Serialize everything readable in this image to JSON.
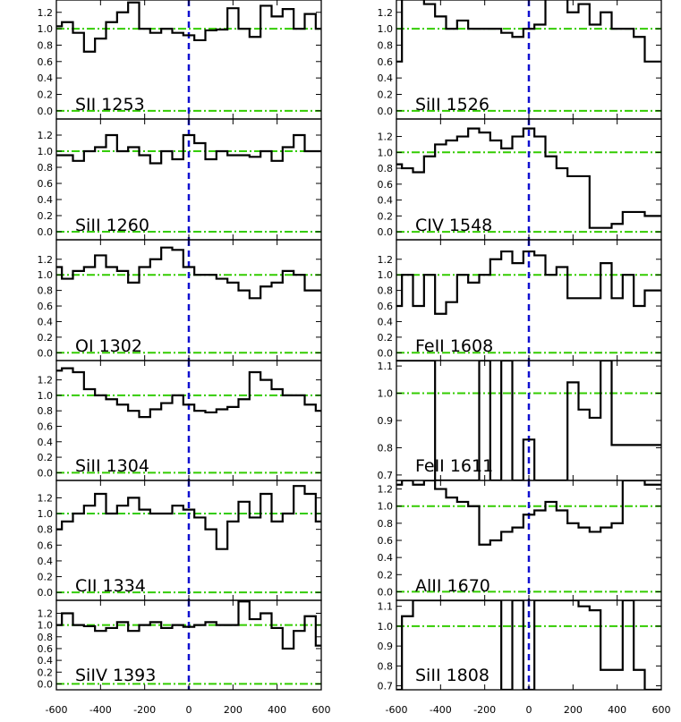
{
  "colors": {
    "spectrum": "#000000",
    "zero_line": "#1010d0",
    "continuum": "#33cc00"
  },
  "x_tick_labels": [
    "-600",
    "-400",
    "-200",
    "0",
    "200",
    "400",
    "600"
  ],
  "chart_data": [
    {
      "type": "line",
      "step": true,
      "column": "left",
      "row": 0,
      "label": "SII 1253",
      "x": [
        -600,
        -550,
        -500,
        -450,
        -400,
        -350,
        -300,
        -250,
        -200,
        -150,
        -100,
        -50,
        0,
        50,
        100,
        150,
        200,
        250,
        300,
        350,
        400,
        450,
        500,
        550,
        600
      ],
      "values": [
        1.03,
        1.08,
        0.95,
        0.72,
        0.88,
        1.08,
        1.2,
        1.32,
        1.0,
        0.95,
        1.0,
        0.95,
        0.92,
        0.86,
        0.98,
        0.99,
        1.25,
        1.0,
        0.9,
        1.28,
        1.15,
        1.24,
        1.0,
        1.18,
        1.0
      ],
      "xlim": [
        -600,
        600
      ],
      "ylim": [
        -0.1,
        1.35
      ],
      "yticks": [
        0.0,
        0.2,
        0.4,
        0.6,
        0.8,
        1.0,
        1.2
      ],
      "ytick_labels": [
        "0.0",
        "0.2",
        "0.4",
        "0.6",
        "0.8",
        "1.0",
        "1.2"
      ],
      "hlines": [
        0.0,
        1.0
      ],
      "vline": 0
    },
    {
      "type": "line",
      "step": true,
      "column": "left",
      "row": 1,
      "label": "SiII 1260",
      "x": [
        -600,
        -550,
        -500,
        -450,
        -400,
        -350,
        -300,
        -250,
        -200,
        -150,
        -100,
        -50,
        0,
        50,
        100,
        150,
        200,
        250,
        300,
        350,
        400,
        450,
        500,
        550,
        600
      ],
      "values": [
        0.95,
        0.95,
        0.88,
        1.0,
        1.05,
        1.2,
        1.0,
        1.05,
        0.95,
        0.85,
        1.0,
        0.9,
        1.2,
        1.1,
        0.9,
        1.0,
        0.95,
        0.95,
        0.93,
        1.0,
        0.88,
        1.05,
        1.2,
        1.0,
        1.0
      ],
      "xlim": [
        -600,
        600
      ],
      "ylim": [
        -0.1,
        1.4
      ],
      "yticks": [
        0.0,
        0.2,
        0.4,
        0.6,
        0.8,
        1.0,
        1.2
      ],
      "ytick_labels": [
        "0.0",
        "0.2",
        "0.4",
        "0.6",
        "0.8",
        "1.0",
        "1.2"
      ],
      "hlines": [
        0.0,
        1.0
      ],
      "vline": 0
    },
    {
      "type": "line",
      "step": true,
      "column": "left",
      "row": 2,
      "label": "OI 1302",
      "x": [
        -600,
        -550,
        -500,
        -450,
        -400,
        -350,
        -300,
        -250,
        -200,
        -150,
        -100,
        -50,
        0,
        50,
        100,
        150,
        200,
        250,
        300,
        350,
        400,
        450,
        500,
        550,
        600
      ],
      "values": [
        1.1,
        0.95,
        1.05,
        1.1,
        1.25,
        1.1,
        1.05,
        0.9,
        1.1,
        1.2,
        1.35,
        1.32,
        1.1,
        1.0,
        1.0,
        0.95,
        0.9,
        0.8,
        0.7,
        0.85,
        0.9,
        1.05,
        1.0,
        0.8,
        0.8
      ],
      "xlim": [
        -600,
        600
      ],
      "ylim": [
        -0.1,
        1.45
      ],
      "yticks": [
        0.0,
        0.2,
        0.4,
        0.6,
        0.8,
        1.0,
        1.2
      ],
      "ytick_labels": [
        "0.0",
        "0.2",
        "0.4",
        "0.6",
        "0.8",
        "1.0",
        "1.2"
      ],
      "hlines": [
        0.0,
        1.0
      ],
      "vline": 0
    },
    {
      "type": "line",
      "step": true,
      "column": "left",
      "row": 3,
      "label": "SiII 1304",
      "x": [
        -600,
        -550,
        -500,
        -450,
        -400,
        -350,
        -300,
        -250,
        -200,
        -150,
        -100,
        -50,
        0,
        50,
        100,
        150,
        200,
        250,
        300,
        350,
        400,
        450,
        500,
        550,
        600
      ],
      "values": [
        1.32,
        1.35,
        1.3,
        1.08,
        1.0,
        0.95,
        0.88,
        0.8,
        0.72,
        0.82,
        0.9,
        1.0,
        0.88,
        0.8,
        0.78,
        0.82,
        0.85,
        0.95,
        1.3,
        1.2,
        1.08,
        1.0,
        1.0,
        0.88,
        0.8
      ],
      "xlim": [
        -600,
        600
      ],
      "ylim": [
        -0.1,
        1.45
      ],
      "yticks": [
        0.0,
        0.2,
        0.4,
        0.6,
        0.8,
        1.0,
        1.2
      ],
      "ytick_labels": [
        "0.0",
        "0.2",
        "0.4",
        "0.6",
        "0.8",
        "1.0",
        "1.2"
      ],
      "hlines": [
        0.0,
        1.0
      ],
      "vline": 0
    },
    {
      "type": "line",
      "step": true,
      "column": "left",
      "row": 4,
      "label": "CII 1334",
      "x": [
        -600,
        -550,
        -500,
        -450,
        -400,
        -350,
        -300,
        -250,
        -200,
        -150,
        -100,
        -50,
        0,
        50,
        100,
        150,
        200,
        250,
        300,
        350,
        400,
        450,
        500,
        550,
        600
      ],
      "values": [
        0.8,
        0.9,
        1.0,
        1.1,
        1.25,
        1.0,
        1.1,
        1.2,
        1.05,
        1.0,
        1.0,
        1.1,
        1.05,
        0.95,
        0.8,
        0.55,
        0.9,
        1.15,
        0.95,
        1.25,
        0.9,
        1.0,
        1.35,
        1.25,
        0.9
      ],
      "xlim": [
        -600,
        600
      ],
      "ylim": [
        -0.1,
        1.42
      ],
      "yticks": [
        0.0,
        0.2,
        0.4,
        0.6,
        0.8,
        1.0,
        1.2
      ],
      "ytick_labels": [
        "0.0",
        "0.2",
        "0.4",
        "0.6",
        "0.8",
        "1.0",
        "1.2"
      ],
      "hlines": [
        0.0,
        1.0
      ],
      "vline": 0
    },
    {
      "type": "line",
      "step": true,
      "column": "left",
      "row": 5,
      "label": "SiIV 1393",
      "x": [
        -600,
        -550,
        -500,
        -450,
        -400,
        -350,
        -300,
        -250,
        -200,
        -150,
        -100,
        -50,
        0,
        50,
        100,
        150,
        200,
        250,
        300,
        350,
        400,
        450,
        500,
        550,
        600
      ],
      "values": [
        1.0,
        1.2,
        1.0,
        0.98,
        0.9,
        0.95,
        1.05,
        0.9,
        1.0,
        1.05,
        0.95,
        1.0,
        0.97,
        1.0,
        1.05,
        1.0,
        1.0,
        1.4,
        1.1,
        1.2,
        0.95,
        0.6,
        0.9,
        1.15,
        0.65
      ],
      "xlim": [
        -600,
        600
      ],
      "ylim": [
        -0.1,
        1.42
      ],
      "yticks": [
        0.0,
        0.2,
        0.4,
        0.6,
        0.8,
        1.0,
        1.2
      ],
      "ytick_labels": [
        "0.0",
        "0.2",
        "0.4",
        "0.6",
        "0.8",
        "1.0",
        "1.2"
      ],
      "hlines": [
        0.0,
        1.0
      ],
      "vline": 0
    },
    {
      "type": "line",
      "step": true,
      "column": "right",
      "row": 0,
      "label": "SiII 1526",
      "x": [
        -600,
        -550,
        -500,
        -450,
        -400,
        -350,
        -300,
        -250,
        -200,
        -150,
        -100,
        -50,
        0,
        50,
        100,
        150,
        200,
        250,
        300,
        350,
        400,
        450,
        500,
        550,
        600
      ],
      "values": [
        0.6,
        1.4,
        1.4,
        1.3,
        1.15,
        1.0,
        1.1,
        1.0,
        1.0,
        1.0,
        0.95,
        0.9,
        1.0,
        1.05,
        1.4,
        1.4,
        1.2,
        1.3,
        1.05,
        1.2,
        1.0,
        1.0,
        0.9,
        0.6,
        0.6
      ],
      "xlim": [
        -600,
        600
      ],
      "ylim": [
        -0.1,
        1.35
      ],
      "yticks": [
        0.0,
        0.2,
        0.4,
        0.6,
        0.8,
        1.0,
        1.2
      ],
      "ytick_labels": [
        "0.0",
        "0.2",
        "0.4",
        "0.6",
        "0.8",
        "1.0",
        "1.2"
      ],
      "hlines": [
        0.0,
        1.0
      ],
      "vline": 0
    },
    {
      "type": "line",
      "step": true,
      "column": "right",
      "row": 1,
      "label": "CIV 1548",
      "x": [
        -600,
        -550,
        -500,
        -450,
        -400,
        -350,
        -300,
        -250,
        -200,
        -150,
        -100,
        -50,
        0,
        50,
        100,
        150,
        200,
        250,
        300,
        350,
        400,
        450,
        500,
        550,
        600
      ],
      "values": [
        0.85,
        0.8,
        0.75,
        0.95,
        1.1,
        1.15,
        1.2,
        1.3,
        1.25,
        1.15,
        1.05,
        1.2,
        1.3,
        1.2,
        0.95,
        0.8,
        0.7,
        0.7,
        0.05,
        0.05,
        0.1,
        0.25,
        0.25,
        0.2,
        0.2
      ],
      "xlim": [
        -600,
        600
      ],
      "ylim": [
        -0.1,
        1.42
      ],
      "yticks": [
        0.0,
        0.2,
        0.4,
        0.6,
        0.8,
        1.0,
        1.2
      ],
      "ytick_labels": [
        "0.0",
        "0.2",
        "0.4",
        "0.6",
        "0.8",
        "1.0",
        "1.2"
      ],
      "hlines": [
        0.0,
        1.0
      ],
      "vline": 0
    },
    {
      "type": "line",
      "step": true,
      "column": "right",
      "row": 2,
      "label": "FeII 1608",
      "x": [
        -600,
        -550,
        -500,
        -450,
        -400,
        -350,
        -300,
        -250,
        -200,
        -150,
        -100,
        -50,
        0,
        50,
        100,
        150,
        200,
        250,
        300,
        350,
        400,
        450,
        500,
        550,
        600
      ],
      "values": [
        0.6,
        1.0,
        0.6,
        1.0,
        0.5,
        0.65,
        1.0,
        0.9,
        1.0,
        1.2,
        1.3,
        1.15,
        1.3,
        1.25,
        1.0,
        1.1,
        0.7,
        0.7,
        0.7,
        1.15,
        0.7,
        1.0,
        0.6,
        0.8,
        0.8
      ],
      "xlim": [
        -600,
        600
      ],
      "ylim": [
        -0.1,
        1.45
      ],
      "yticks": [
        0.0,
        0.2,
        0.4,
        0.6,
        0.8,
        1.0,
        1.2
      ],
      "ytick_labels": [
        "0.0",
        "0.2",
        "0.4",
        "0.6",
        "0.8",
        "1.0",
        "1.2"
      ],
      "hlines": [
        0.0,
        1.0
      ],
      "vline": 0
    },
    {
      "type": "line",
      "step": true,
      "column": "right",
      "row": 3,
      "label": "FeII 1611",
      "x": [
        -600,
        -550,
        -500,
        -450,
        -400,
        -350,
        -300,
        -250,
        -200,
        -150,
        -100,
        -50,
        0,
        50,
        100,
        150,
        200,
        250,
        300,
        350,
        400,
        450,
        500,
        550,
        600
      ],
      "values": [
        1.12,
        1.12,
        1.12,
        1.12,
        0.68,
        0.68,
        0.68,
        0.68,
        1.12,
        0.68,
        1.12,
        0.68,
        0.83,
        0.68,
        0.68,
        0.68,
        1.04,
        0.94,
        0.91,
        1.12,
        0.81,
        0.81,
        0.81,
        0.81,
        0.81
      ],
      "xlim": [
        -600,
        600
      ],
      "ylim": [
        0.68,
        1.12
      ],
      "yticks": [
        0.7,
        0.8,
        0.9,
        1.0,
        1.1
      ],
      "ytick_labels": [
        "0.7",
        "0.8",
        "0.9",
        "1.0",
        "1.1"
      ],
      "hlines": [
        1.0
      ],
      "vline": 0
    },
    {
      "type": "line",
      "step": true,
      "column": "right",
      "row": 4,
      "label": "AlII 1670",
      "x": [
        -600,
        -550,
        -500,
        -450,
        -400,
        -350,
        -300,
        -250,
        -200,
        -150,
        -100,
        -50,
        0,
        50,
        100,
        150,
        200,
        250,
        300,
        350,
        400,
        450,
        500,
        550,
        600
      ],
      "values": [
        1.25,
        1.3,
        1.25,
        1.3,
        1.2,
        1.1,
        1.05,
        1.0,
        0.55,
        0.6,
        0.7,
        0.75,
        0.9,
        0.95,
        1.05,
        0.95,
        0.8,
        0.75,
        0.7,
        0.75,
        0.8,
        1.3,
        1.3,
        1.25,
        1.25
      ],
      "xlim": [
        -600,
        600
      ],
      "ylim": [
        -0.1,
        1.3
      ],
      "yticks": [
        0.0,
        0.2,
        0.4,
        0.6,
        0.8,
        1.0,
        1.2
      ],
      "ytick_labels": [
        "0.0",
        "0.2",
        "0.4",
        "0.6",
        "0.8",
        "1.0",
        "1.2"
      ],
      "hlines": [
        0.0,
        1.0
      ],
      "vline": 0
    },
    {
      "type": "line",
      "step": true,
      "column": "right",
      "row": 5,
      "label": "SiII 1808",
      "x": [
        -600,
        -550,
        -500,
        -450,
        -400,
        -350,
        -300,
        -250,
        -200,
        -150,
        -100,
        -50,
        0,
        50,
        100,
        150,
        200,
        250,
        300,
        350,
        400,
        450,
        500,
        550,
        600
      ],
      "values": [
        0.68,
        1.05,
        1.13,
        1.13,
        1.13,
        1.13,
        1.13,
        1.13,
        1.13,
        1.13,
        0.68,
        1.13,
        0.68,
        1.13,
        1.13,
        1.13,
        1.13,
        1.1,
        1.08,
        0.78,
        0.78,
        1.13,
        0.78,
        0.68,
        0.68
      ],
      "xlim": [
        -600,
        600
      ],
      "ylim": [
        0.68,
        1.13
      ],
      "yticks": [
        0.7,
        0.8,
        0.9,
        1.0,
        1.1
      ],
      "ytick_labels": [
        "0.7",
        "0.8",
        "0.9",
        "1.0",
        "1.1"
      ],
      "hlines": [
        1.0
      ],
      "vline": 0
    }
  ]
}
